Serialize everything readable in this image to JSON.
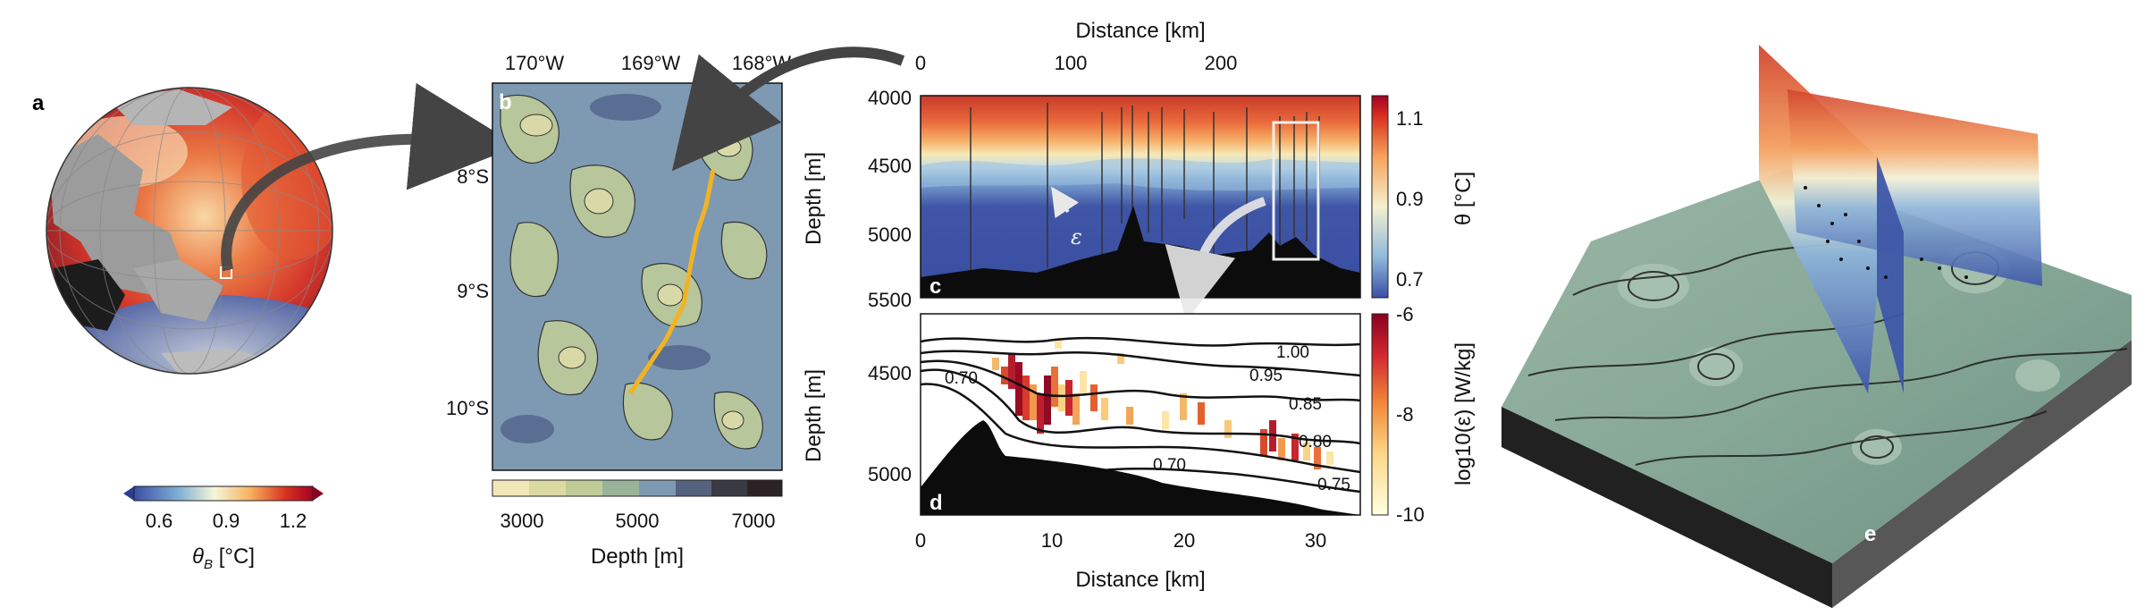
{
  "panels": {
    "a": {
      "label": "a",
      "colorbar": {
        "label": "θ",
        "label_sub": "B",
        "label_unit": " [°C]",
        "ticks": [
          "0.6",
          "0.9",
          "1.2"
        ],
        "range": [
          0.45,
          1.25
        ]
      }
    },
    "b": {
      "label": "b",
      "top_ticks": [
        "170°W",
        "169°W",
        "168°W"
      ],
      "left_ticks": [
        "8°S",
        "9°S",
        "10°S"
      ],
      "colorbar": {
        "label": "Depth [m]",
        "ticks": [
          "3000",
          "5000",
          "7000"
        ],
        "range": [
          2500,
          7500
        ]
      },
      "track_color": "#f2b322"
    },
    "c": {
      "label": "c",
      "xlabel_top": "Distance [km]",
      "x_ticks": [
        "0",
        "100",
        "200"
      ],
      "ylabel": "Depth [m]",
      "y_ticks": [
        "4000",
        "4500",
        "5000",
        "5500"
      ],
      "epsilon_label": "ε",
      "colorbar": {
        "label": "θ [°C]",
        "ticks": [
          "1.1",
          "0.9",
          "0.7"
        ],
        "range": [
          0.65,
          1.15
        ]
      }
    },
    "d": {
      "label": "d",
      "xlabel": "Distance [km]",
      "x_ticks": [
        "0",
        "10",
        "20",
        "30"
      ],
      "ylabel": "Depth [m]",
      "y_ticks": [
        "4500",
        "5000"
      ],
      "colorbar": {
        "label": "log10(ε) [W/kg]",
        "ticks": [
          "-6",
          "-8",
          "-10"
        ],
        "range": [
          -10,
          -6
        ]
      },
      "contour_labels": [
        "1.00",
        "0.95",
        "0.85",
        "0.80",
        "0.75",
        "0.70",
        "0.70"
      ]
    },
    "e": {
      "label": "e"
    }
  },
  "chart_data": [
    {
      "type": "heatmap",
      "panel": "a",
      "title": "",
      "colorbar_label": "θB [°C]",
      "colorbar_ticks": [
        0.6,
        0.9,
        1.2
      ],
      "vmin": 0.45,
      "vmax": 1.25,
      "colormap": "RdYlBu_r"
    },
    {
      "type": "heatmap",
      "panel": "b",
      "title": "",
      "x_ticks": [
        "170°W",
        "169°W",
        "168°W"
      ],
      "y_ticks": [
        "8°S",
        "9°S",
        "10°S"
      ],
      "colorbar_label": "Depth [m]",
      "colorbar_ticks": [
        3000,
        5000,
        7000
      ],
      "vmin": 2500,
      "vmax": 7500
    },
    {
      "type": "heatmap",
      "panel": "c",
      "title": "",
      "xlabel": "Distance [km]",
      "ylabel": "Depth [m]",
      "xlim": [
        0,
        290
      ],
      "ylim": [
        5500,
        4000
      ],
      "x_ticks": [
        0,
        100,
        200
      ],
      "y_ticks": [
        4000,
        4500,
        5000,
        5500
      ],
      "colorbar_label": "θ [°C]",
      "colorbar_ticks": [
        0.7,
        0.9,
        1.1
      ],
      "vmin": 0.65,
      "vmax": 1.15
    },
    {
      "type": "heatmap",
      "panel": "d",
      "title": "",
      "xlabel": "Distance [km]",
      "ylabel": "Depth [m]",
      "xlim": [
        0,
        32
      ],
      "ylim": [
        5150,
        4200
      ],
      "x_ticks": [
        0,
        10,
        20,
        30
      ],
      "y_ticks": [
        4500,
        5000
      ],
      "colorbar_label": "log10(ε) [W/kg]",
      "colorbar_ticks": [
        -6,
        -8,
        -10
      ],
      "vmin": -10,
      "vmax": -6,
      "contour_levels": [
        0.7,
        0.75,
        0.8,
        0.85,
        0.95,
        1.0
      ]
    }
  ]
}
